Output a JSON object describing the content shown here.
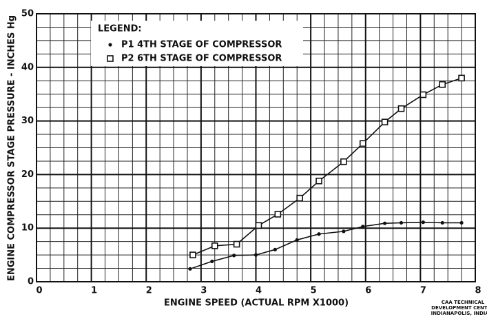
{
  "chart_data": {
    "type": "scatter",
    "xlabel": "ENGINE SPEED  (ACTUAL RPM X1000)",
    "ylabel": "ENGINE COMPRESSOR STAGE PRESSURE - INCHES Hg",
    "legend_title": "LEGEND:",
    "legend": "upper left",
    "footnote": [
      "CAA TECHNICAL",
      "DEVELOPMENT CENTER",
      "INDIANAPOLIS, INDIAN."
    ],
    "series": [
      {
        "name": "P1 4TH STAGE OF COMPRESSOR",
        "marker": "dot",
        "color": "#111111",
        "x": [
          2.8,
          3.2,
          3.6,
          4.0,
          4.35,
          4.75,
          5.15,
          5.6,
          5.95,
          6.35,
          6.65,
          7.05,
          7.4,
          7.75
        ],
        "values": [
          2.4,
          3.8,
          4.9,
          5.0,
          6.0,
          7.8,
          8.9,
          9.4,
          10.3,
          10.9,
          11.0,
          11.1,
          11.0,
          11.0
        ]
      },
      {
        "name": "P2 6TH STAGE OF COMPRESSOR",
        "marker": "square",
        "color": "#111111",
        "x": [
          2.85,
          3.25,
          3.65,
          4.05,
          4.4,
          4.8,
          5.15,
          5.6,
          5.95,
          6.35,
          6.65,
          7.05,
          7.4,
          7.75
        ],
        "values": [
          5.0,
          6.7,
          7.0,
          10.5,
          12.6,
          15.6,
          18.8,
          22.4,
          25.8,
          29.8,
          32.3,
          34.9,
          36.8,
          38.0
        ]
      }
    ],
    "xlim": [
      0,
      8
    ],
    "xticks": [
      0,
      1,
      2,
      3,
      4,
      5,
      6,
      7,
      8
    ],
    "ylim": [
      0,
      50
    ],
    "yticks": [
      0,
      10,
      20,
      30,
      40,
      50
    ],
    "grid": true,
    "minor_divisions": 4
  }
}
